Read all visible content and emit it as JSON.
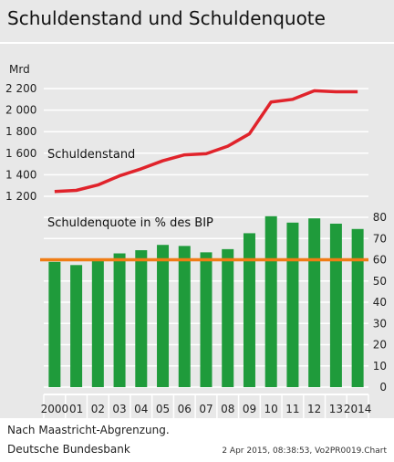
{
  "chart_data": {
    "title": "Schuldenstand und Schuldenquote",
    "categories": [
      "2000",
      "01",
      "02",
      "03",
      "04",
      "05",
      "06",
      "07",
      "08",
      "09",
      "10",
      "11",
      "12",
      "13",
      "2014"
    ],
    "top_panel": {
      "type": "line",
      "unit_label": "Mrd",
      "series": [
        {
          "name": "Schuldenstand",
          "color": "#e0232b",
          "values": [
            1245,
            1255,
            1305,
            1390,
            1455,
            1530,
            1585,
            1595,
            1665,
            1780,
            2075,
            2100,
            2180,
            2170,
            2170
          ]
        }
      ],
      "ylim": [
        1200,
        2200
      ],
      "yticks": [
        "1 200",
        "1 400",
        "1 600",
        "1 800",
        "2 000",
        "2 200"
      ]
    },
    "bottom_panel": {
      "type": "bar",
      "series": [
        {
          "name": "Schuldenquote in % des BIP",
          "color": "#1f9b3b",
          "values": [
            59,
            57.5,
            59.5,
            63,
            64.5,
            67,
            66.5,
            63.5,
            65,
            72.5,
            80.5,
            77.5,
            79.5,
            77,
            74.5
          ]
        }
      ],
      "reference_line": {
        "value": 60,
        "color": "#f07d15"
      },
      "ylim": [
        0,
        80
      ],
      "yticks": [
        "0",
        "10",
        "20",
        "30",
        "40",
        "50",
        "60",
        "70",
        "80"
      ]
    },
    "grid": true
  },
  "footer": {
    "note": "Nach Maastricht-Abgrenzung.",
    "source": "Deutsche Bundesbank",
    "stamp": "2 Apr 2015, 08:38:53, Vo2PR0019.Chart"
  }
}
